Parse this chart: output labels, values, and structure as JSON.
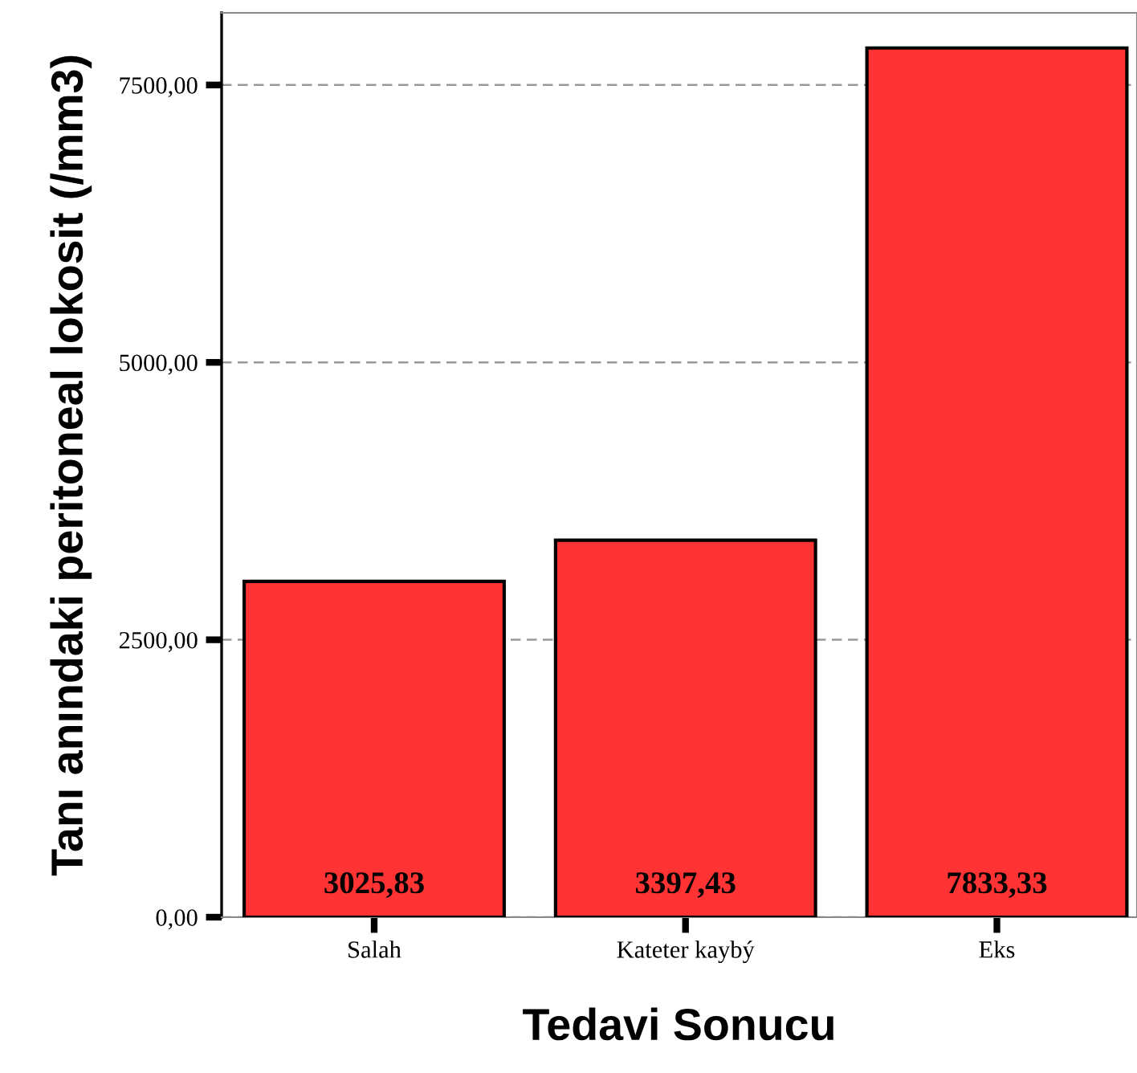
{
  "chart_data": {
    "type": "bar",
    "xlabel": "Tedavi Sonucu",
    "ylabel": "Tanı anındaki peritoneal lokosit (/mm3)",
    "categories": [
      "Salah",
      "Kateter kaybý",
      "Eks"
    ],
    "values": [
      3025.83,
      3397.43,
      7833.33
    ],
    "value_labels": [
      "3025,83",
      "3397,43",
      "7833,33"
    ],
    "color": "#ff3333",
    "ylim": [
      0,
      8150
    ],
    "yticks": [
      {
        "value": 0,
        "label": "0,00"
      },
      {
        "value": 2500,
        "label": "2500,00"
      },
      {
        "value": 5000,
        "label": "5000,00"
      },
      {
        "value": 7500,
        "label": "7500,00"
      }
    ],
    "grid": "y",
    "line_style": "dashed"
  }
}
